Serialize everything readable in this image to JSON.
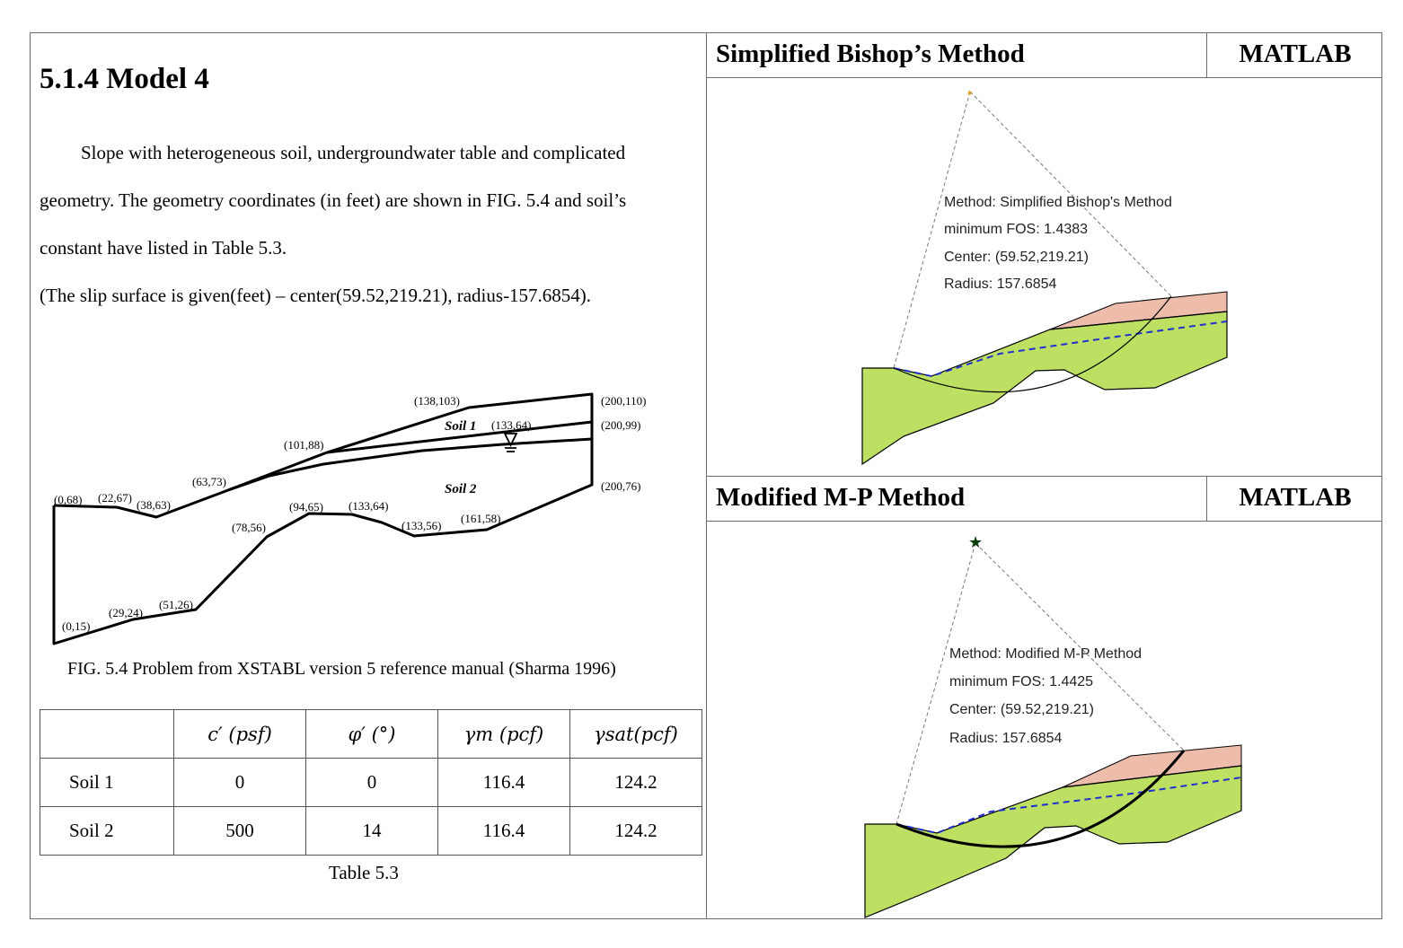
{
  "section": {
    "title": "5.1.4 Model 4",
    "paragraph_lines": [
      "Slope with heterogeneous soil, undergroundwater table and complicated",
      "geometry. The geometry coordinates (in feet) are shown in FIG. 5.4 and soil’s",
      "constant have listed in Table 5.3.",
      "(The slip surface is given(feet) – center(59.52,219.21), radius-157.6854)."
    ]
  },
  "figure": {
    "caption": "FIG. 5.4 Problem from XSTABL version 5 reference manual (Sharma 1996)",
    "soil_labels": [
      "Soil 1",
      "Soil 2"
    ],
    "point_labels": {
      "p0_68": "(0,68)",
      "p22_67": "(22,67)",
      "p38_63": "(38,63)",
      "p63_73": "(63,73)",
      "p101_88": "(101,88)",
      "p138_103": "(138,103)",
      "p200_110": "(200,110)",
      "p133_64_top": "(133,64)",
      "p200_99": "(200,99)",
      "p200_76": "(200,76)",
      "p94_65": "(94,65)",
      "p133_64": "(133,64)",
      "p78_56": "(78,56)",
      "p133_56": "(133,56)",
      "p161_58": "(161,58)",
      "p51_26": "(51,26)",
      "p29_24": "(29,24)",
      "p0_15": "(0,15)"
    }
  },
  "table": {
    "caption": "Table 5.3",
    "headers": [
      "",
      "c′  (psf)",
      "φ′  (°)",
      "γm  (pcf)",
      "γsat(pcf)"
    ],
    "rows": [
      [
        "Soil 1",
        "0",
        "0",
        "116.4",
        "124.2"
      ],
      [
        "Soil 2",
        "500",
        "14",
        "116.4",
        "124.2"
      ]
    ]
  },
  "panels": [
    {
      "title": "Simplified Bishop’s Method",
      "tag": "MATLAB",
      "annotation": [
        "Method: Simplified Bishop's Method",
        "minimum FOS: 1.4383",
        "Center: (59.52,219.21)",
        "Radius: 157.6854"
      ]
    },
    {
      "title": "Modified M-P Method",
      "tag": "MATLAB",
      "annotation": [
        "Method: Modified M-P Method",
        "minimum FOS: 1.4425",
        "Center: (59.52,219.21)",
        "Radius: 157.6854"
      ]
    }
  ],
  "colors": {
    "soil1_fill": "#edbcab",
    "soil2_fill": "#bee062",
    "water_table": "#1f2fd0"
  }
}
